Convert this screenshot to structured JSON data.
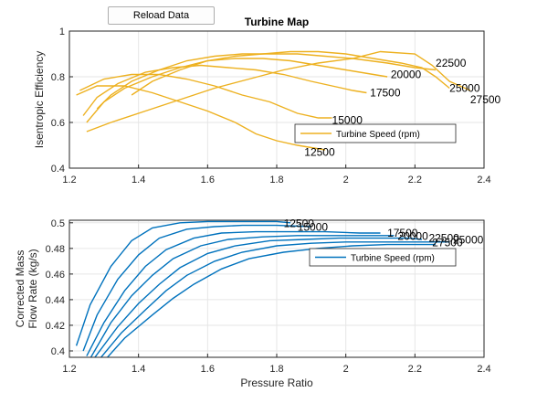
{
  "toolbar": {
    "reload_label": "Reload Data"
  },
  "colors": {
    "efficiency_line": "#EDB120",
    "flow_line": "#0072BD",
    "grid": "#e6e6e6",
    "axis": "#262626"
  },
  "chart_data": [
    {
      "type": "line",
      "title": "Turbine Map",
      "xlabel": "",
      "ylabel": "Isentropic Efficiency",
      "xlim": [
        1.2,
        2.4
      ],
      "ylim": [
        0.4,
        1.0
      ],
      "xticks": [
        1.2,
        1.4,
        1.6,
        1.8,
        2.0,
        2.2,
        2.4
      ],
      "yticks": [
        0.4,
        0.6,
        0.8,
        1.0
      ],
      "xtick_labels": [
        "1.2",
        "1.4",
        "1.6",
        "1.8",
        "2",
        "2.2",
        "2.4"
      ],
      "ytick_labels": [
        "0.4",
        "0.6",
        "0.8",
        "1"
      ],
      "grid": true,
      "legend": {
        "label": "Turbine Speed (rpm)",
        "placement": "bottom-right"
      },
      "series": [
        {
          "name": "12500",
          "points": [
            [
              1.22,
              0.72
            ],
            [
              1.28,
              0.76
            ],
            [
              1.36,
              0.76
            ],
            [
              1.44,
              0.73
            ],
            [
              1.52,
              0.69
            ],
            [
              1.6,
              0.65
            ],
            [
              1.68,
              0.6
            ],
            [
              1.74,
              0.55
            ],
            [
              1.8,
              0.52
            ],
            [
              1.86,
              0.5
            ],
            [
              1.94,
              0.48
            ]
          ]
        },
        {
          "name": "15000",
          "points": [
            [
              1.23,
              0.74
            ],
            [
              1.3,
              0.79
            ],
            [
              1.38,
              0.81
            ],
            [
              1.46,
              0.81
            ],
            [
              1.54,
              0.79
            ],
            [
              1.62,
              0.76
            ],
            [
              1.7,
              0.72
            ],
            [
              1.78,
              0.69
            ],
            [
              1.86,
              0.64
            ],
            [
              1.92,
              0.62
            ],
            [
              1.96,
              0.62
            ]
          ]
        },
        {
          "name": "17500",
          "points": [
            [
              1.24,
              0.63
            ],
            [
              1.28,
              0.71
            ],
            [
              1.34,
              0.77
            ],
            [
              1.42,
              0.82
            ],
            [
              1.5,
              0.84
            ],
            [
              1.58,
              0.85
            ],
            [
              1.66,
              0.84
            ],
            [
              1.74,
              0.83
            ],
            [
              1.82,
              0.81
            ],
            [
              1.9,
              0.78
            ],
            [
              1.96,
              0.76
            ],
            [
              2.02,
              0.74
            ],
            [
              2.06,
              0.73
            ]
          ]
        },
        {
          "name": "20000",
          "points": [
            [
              1.25,
              0.6
            ],
            [
              1.3,
              0.69
            ],
            [
              1.36,
              0.75
            ],
            [
              1.44,
              0.8
            ],
            [
              1.52,
              0.84
            ],
            [
              1.6,
              0.87
            ],
            [
              1.68,
              0.88
            ],
            [
              1.76,
              0.88
            ],
            [
              1.84,
              0.87
            ],
            [
              1.92,
              0.85
            ],
            [
              2.0,
              0.83
            ],
            [
              2.08,
              0.81
            ],
            [
              2.12,
              0.8
            ]
          ]
        },
        {
          "name": "22500",
          "points": [
            [
              1.28,
              0.66
            ],
            [
              1.32,
              0.72
            ],
            [
              1.38,
              0.78
            ],
            [
              1.46,
              0.83
            ],
            [
              1.54,
              0.87
            ],
            [
              1.62,
              0.89
            ],
            [
              1.7,
              0.9
            ],
            [
              1.78,
              0.9
            ],
            [
              1.86,
              0.9
            ],
            [
              1.94,
              0.89
            ],
            [
              2.02,
              0.88
            ],
            [
              2.12,
              0.86
            ],
            [
              2.2,
              0.84
            ],
            [
              2.26,
              0.83
            ]
          ]
        },
        {
          "name": "25000",
          "points": [
            [
              1.38,
              0.72
            ],
            [
              1.44,
              0.78
            ],
            [
              1.52,
              0.83
            ],
            [
              1.6,
              0.87
            ],
            [
              1.68,
              0.89
            ],
            [
              1.76,
              0.9
            ],
            [
              1.84,
              0.91
            ],
            [
              1.92,
              0.91
            ],
            [
              2.0,
              0.9
            ],
            [
              2.08,
              0.88
            ],
            [
              2.16,
              0.86
            ],
            [
              2.22,
              0.84
            ],
            [
              2.26,
              0.8
            ],
            [
              2.3,
              0.75
            ]
          ]
        },
        {
          "name": "27500",
          "points": [
            [
              1.25,
              0.56
            ],
            [
              1.32,
              0.6
            ],
            [
              1.42,
              0.65
            ],
            [
              1.52,
              0.7
            ],
            [
              1.62,
              0.75
            ],
            [
              1.72,
              0.79
            ],
            [
              1.82,
              0.83
            ],
            [
              1.92,
              0.86
            ],
            [
              2.02,
              0.88
            ],
            [
              2.1,
              0.91
            ],
            [
              2.2,
              0.9
            ],
            [
              2.25,
              0.85
            ],
            [
              2.3,
              0.78
            ],
            [
              2.36,
              0.74
            ]
          ]
        }
      ],
      "annotations": [
        {
          "text": "12500",
          "x": 1.88,
          "y": 0.47
        },
        {
          "text": "15000",
          "x": 1.96,
          "y": 0.61
        },
        {
          "text": "17500",
          "x": 2.07,
          "y": 0.73
        },
        {
          "text": "20000",
          "x": 2.13,
          "y": 0.81
        },
        {
          "text": "22500",
          "x": 2.26,
          "y": 0.86
        },
        {
          "text": "25000",
          "x": 2.3,
          "y": 0.75
        },
        {
          "text": "27500",
          "x": 2.36,
          "y": 0.7
        }
      ]
    },
    {
      "type": "line",
      "title": "",
      "xlabel": "Pressure Ratio",
      "ylabel": "Corrected Mass Flow Rate (kg/s)",
      "ylabel_lines": [
        "Corrected Mass",
        "Flow Rate (kg/s)"
      ],
      "xlim": [
        1.2,
        2.4
      ],
      "ylim": [
        0.395,
        0.502
      ],
      "xticks": [
        1.2,
        1.4,
        1.6,
        1.8,
        2.0,
        2.2,
        2.4
      ],
      "yticks": [
        0.4,
        0.42,
        0.44,
        0.46,
        0.48,
        0.5
      ],
      "xtick_labels": [
        "1.2",
        "1.4",
        "1.6",
        "1.8",
        "2",
        "2.2",
        "2.4"
      ],
      "ytick_labels": [
        "0.4",
        "0.42",
        "0.44",
        "0.46",
        "0.48",
        "0.5"
      ],
      "grid": true,
      "legend": {
        "label": "Turbine Speed (rpm)",
        "placement": "right"
      },
      "series": [
        {
          "name": "12500",
          "points": [
            [
              1.22,
              0.404
            ],
            [
              1.26,
              0.436
            ],
            [
              1.32,
              0.466
            ],
            [
              1.38,
              0.486
            ],
            [
              1.44,
              0.496
            ],
            [
              1.52,
              0.5
            ],
            [
              1.6,
              0.501
            ],
            [
              1.7,
              0.501
            ],
            [
              1.8,
              0.501
            ],
            [
              1.84,
              0.5
            ]
          ]
        },
        {
          "name": "15000",
          "points": [
            [
              1.24,
              0.4
            ],
            [
              1.28,
              0.428
            ],
            [
              1.34,
              0.456
            ],
            [
              1.4,
              0.475
            ],
            [
              1.46,
              0.488
            ],
            [
              1.54,
              0.495
            ],
            [
              1.62,
              0.497
            ],
            [
              1.7,
              0.498
            ],
            [
              1.8,
              0.498
            ],
            [
              1.9,
              0.497
            ]
          ]
        },
        {
          "name": "17500",
          "points": [
            [
              1.25,
              0.396
            ],
            [
              1.3,
              0.422
            ],
            [
              1.36,
              0.447
            ],
            [
              1.42,
              0.466
            ],
            [
              1.48,
              0.479
            ],
            [
              1.56,
              0.488
            ],
            [
              1.64,
              0.492
            ],
            [
              1.74,
              0.493
            ],
            [
              1.84,
              0.493
            ],
            [
              1.94,
              0.493
            ],
            [
              2.04,
              0.492
            ],
            [
              2.1,
              0.492
            ]
          ]
        },
        {
          "name": "20000",
          "points": [
            [
              1.26,
              0.394
            ],
            [
              1.32,
              0.422
            ],
            [
              1.38,
              0.443
            ],
            [
              1.44,
              0.459
            ],
            [
              1.5,
              0.472
            ],
            [
              1.58,
              0.482
            ],
            [
              1.66,
              0.487
            ],
            [
              1.76,
              0.489
            ],
            [
              1.86,
              0.49
            ],
            [
              1.96,
              0.49
            ],
            [
              2.06,
              0.49
            ],
            [
              2.14,
              0.49
            ]
          ]
        },
        {
          "name": "22500",
          "points": [
            [
              1.26,
              0.39
            ],
            [
              1.34,
              0.419
            ],
            [
              1.4,
              0.437
            ],
            [
              1.46,
              0.452
            ],
            [
              1.52,
              0.465
            ],
            [
              1.6,
              0.476
            ],
            [
              1.68,
              0.482
            ],
            [
              1.78,
              0.486
            ],
            [
              1.88,
              0.487
            ],
            [
              1.98,
              0.488
            ],
            [
              2.08,
              0.488
            ],
            [
              2.18,
              0.488
            ],
            [
              2.22,
              0.487
            ]
          ]
        },
        {
          "name": "25000",
          "points": [
            [
              1.27,
              0.388
            ],
            [
              1.35,
              0.414
            ],
            [
              1.42,
              0.432
            ],
            [
              1.48,
              0.447
            ],
            [
              1.54,
              0.459
            ],
            [
              1.62,
              0.47
            ],
            [
              1.7,
              0.477
            ],
            [
              1.8,
              0.482
            ],
            [
              1.9,
              0.484
            ],
            [
              2.0,
              0.485
            ],
            [
              2.1,
              0.485
            ],
            [
              2.2,
              0.485
            ],
            [
              2.3,
              0.485
            ]
          ]
        },
        {
          "name": "27500",
          "points": [
            [
              1.28,
              0.386
            ],
            [
              1.36,
              0.41
            ],
            [
              1.44,
              0.428
            ],
            [
              1.5,
              0.441
            ],
            [
              1.56,
              0.452
            ],
            [
              1.64,
              0.464
            ],
            [
              1.72,
              0.472
            ],
            [
              1.82,
              0.477
            ],
            [
              1.92,
              0.48
            ],
            [
              2.02,
              0.482
            ],
            [
              2.12,
              0.483
            ],
            [
              2.2,
              0.483
            ],
            [
              2.26,
              0.483
            ]
          ]
        }
      ],
      "annotations": [
        {
          "text": "12500",
          "x": 1.82,
          "y": 0.4995
        },
        {
          "text": "15000",
          "x": 1.86,
          "y": 0.4965
        },
        {
          "text": "17500",
          "x": 2.12,
          "y": 0.492
        },
        {
          "text": "20000",
          "x": 2.15,
          "y": 0.4895
        },
        {
          "text": "22500",
          "x": 2.24,
          "y": 0.488
        },
        {
          "text": "25000",
          "x": 2.31,
          "y": 0.4865
        },
        {
          "text": "27500",
          "x": 2.25,
          "y": 0.4845
        }
      ]
    }
  ]
}
